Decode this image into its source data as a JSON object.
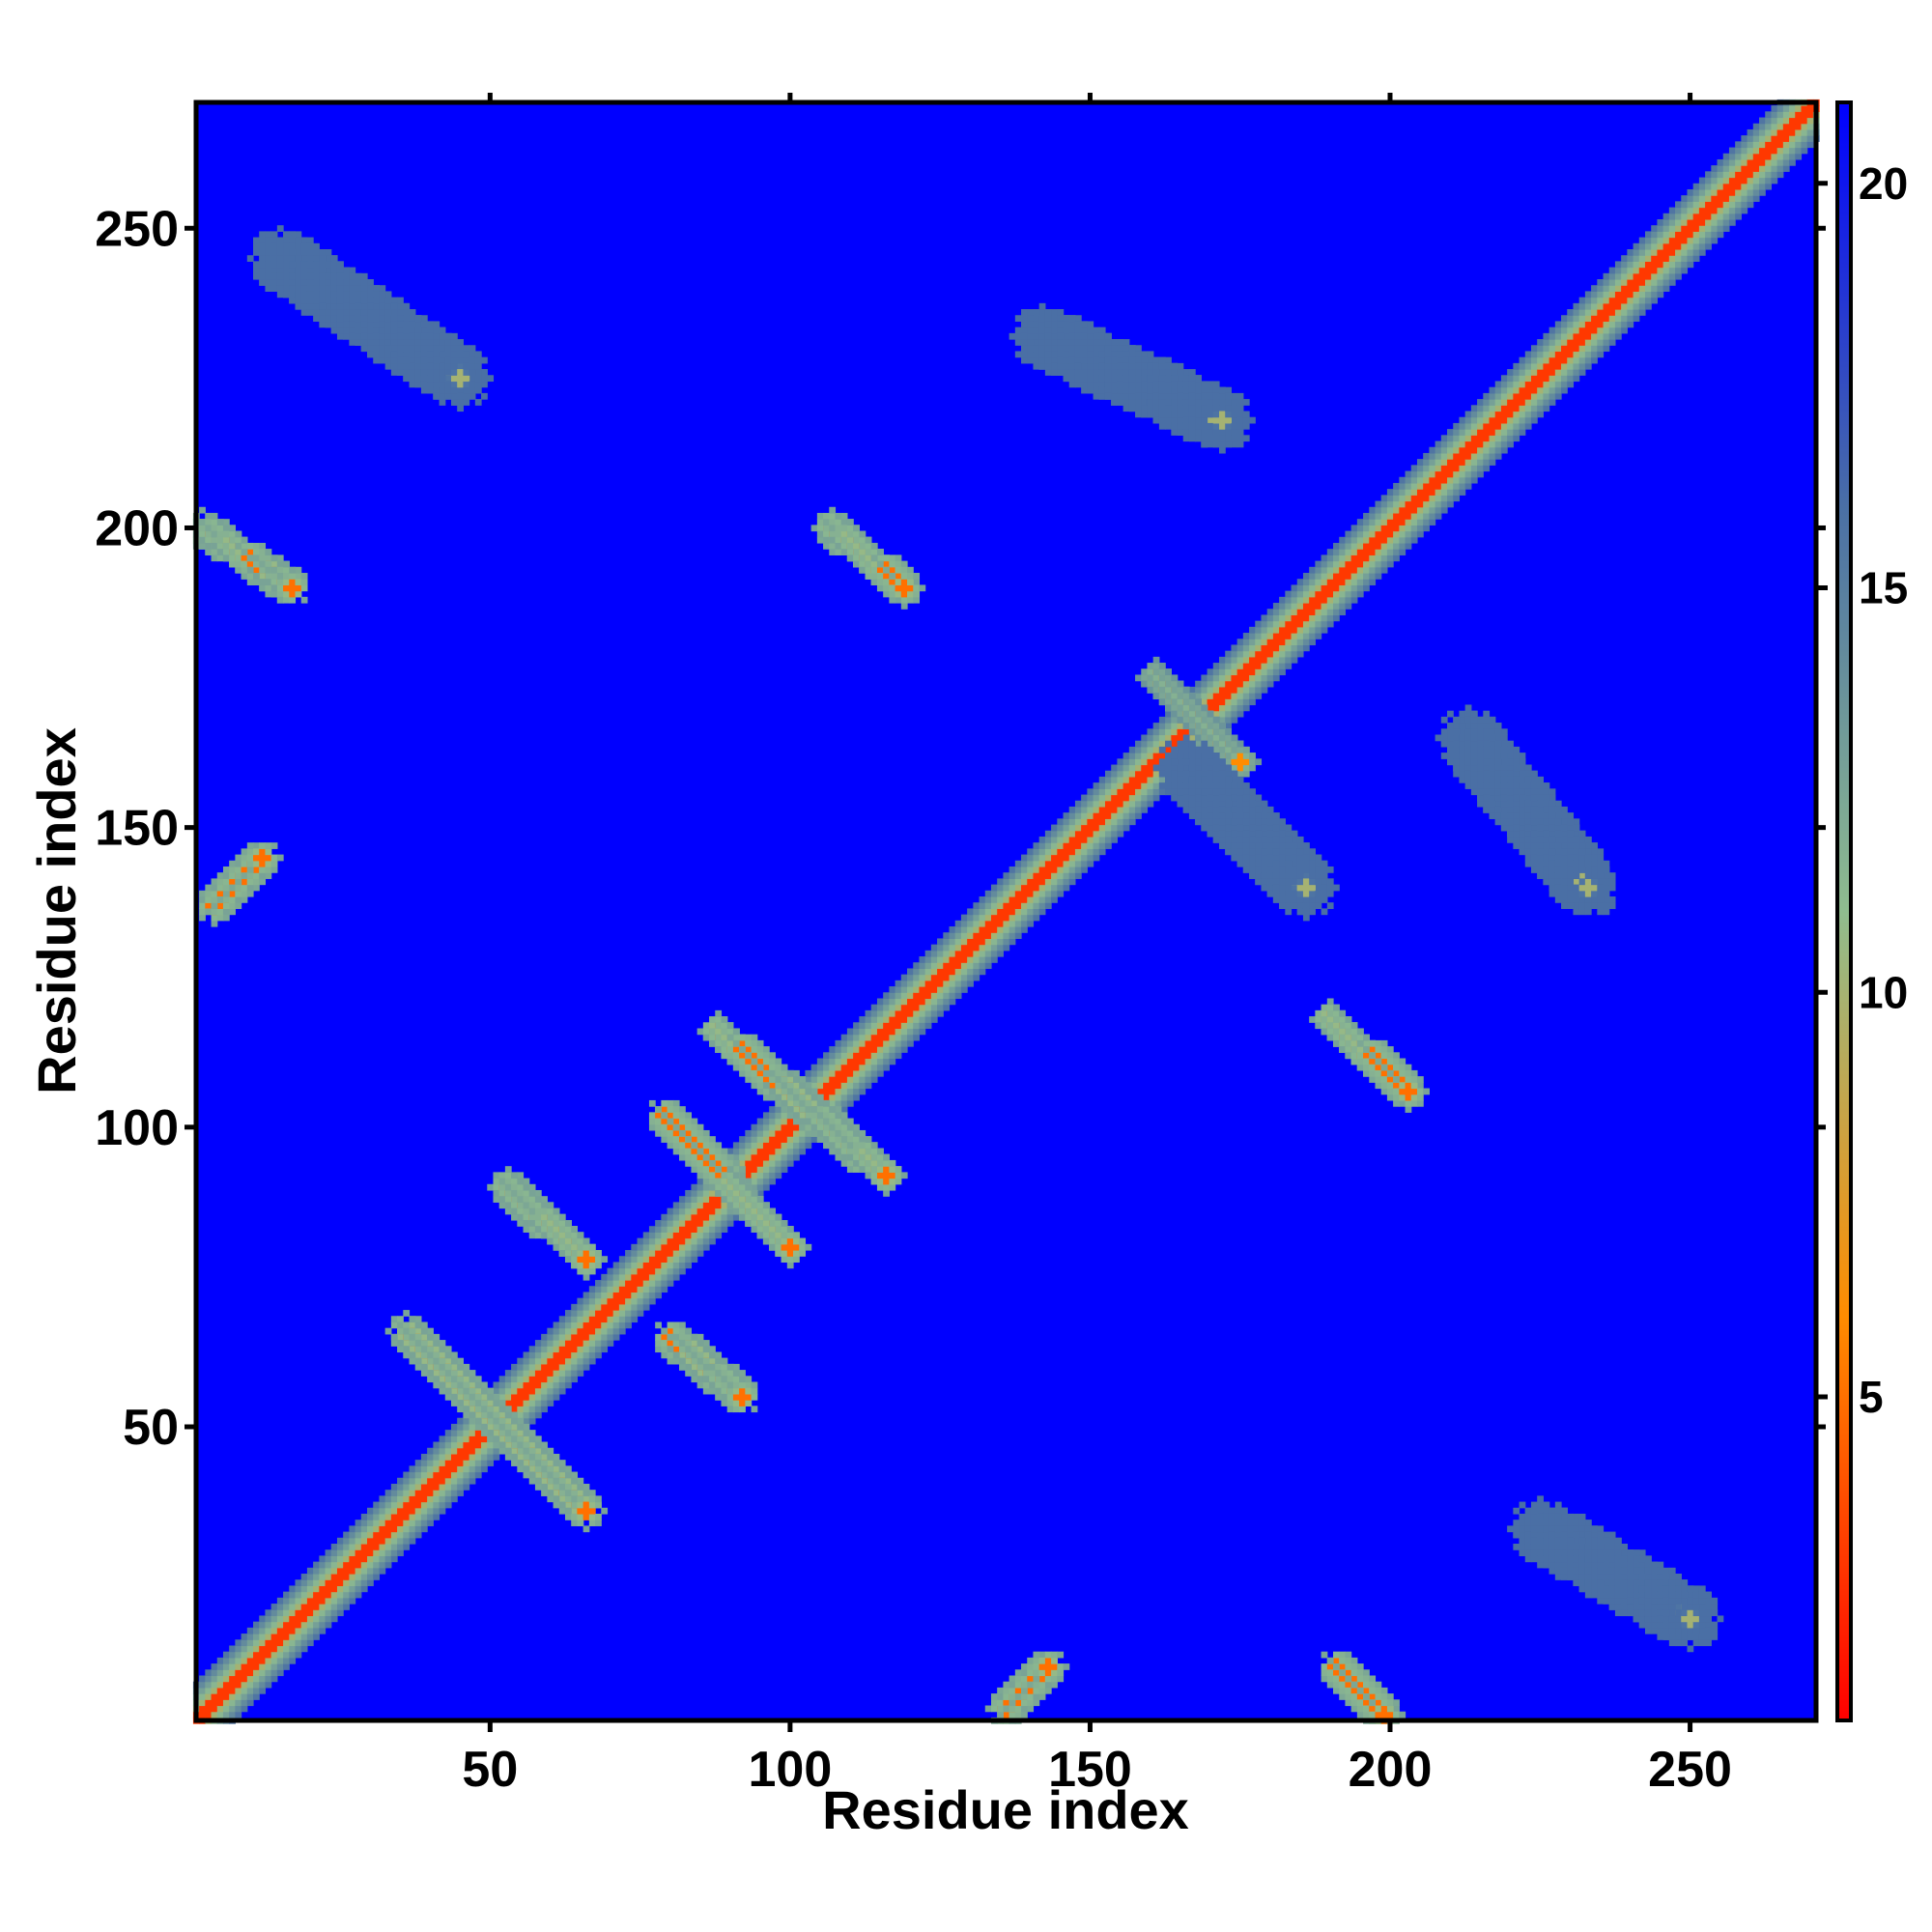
{
  "chart_data": {
    "type": "heatmap",
    "title": "",
    "xlabel": "Residue index",
    "ylabel": "Residue index",
    "xlim": [
      1,
      271
    ],
    "ylim": [
      1,
      271
    ],
    "xticks": [
      50,
      100,
      150,
      200,
      250
    ],
    "yticks": [
      50,
      100,
      150,
      200,
      250
    ],
    "colorbar": {
      "ticks": [
        5,
        10,
        15,
        20
      ],
      "range": [
        1,
        21
      ],
      "colors": [
        "#ff0000",
        "#ff8c00",
        "#8fbc8f",
        "#4a6fa5",
        "#0000ff"
      ]
    },
    "background_value": 21,
    "diagonal": {
      "from": 1,
      "to": 271,
      "core_value": 3,
      "halo_value": 10
    },
    "contact_bands": [
      {
        "x": [
          36,
          66
        ],
        "y": [
          66,
          36
        ],
        "value": 5
      },
      {
        "x": [
          53,
          66
        ],
        "y": [
          90,
          78
        ],
        "value": 5
      },
      {
        "x": [
          79,
          100
        ],
        "y": [
          102,
          80
        ],
        "value": 5
      },
      {
        "x": [
          88,
          116
        ],
        "y": [
          116,
          92
        ],
        "value": 5
      },
      {
        "x": [
          80,
          92
        ],
        "y": [
          65,
          55
        ],
        "value": 5
      },
      {
        "x": [
          107,
          119
        ],
        "y": [
          200,
          190
        ],
        "value": 5
      },
      {
        "x": [
          2,
          17
        ],
        "y": [
          200,
          190
        ],
        "value": 5
      },
      {
        "x": [
          4,
          12
        ],
        "y": [
          137,
          145
        ],
        "value": 5
      },
      {
        "x": [
          161,
          175
        ],
        "y": [
          175,
          161
        ],
        "value": 6
      },
      {
        "x": [
          190,
          203
        ],
        "y": [
          118,
          106
        ],
        "value": 5
      },
      {
        "x": [
          191,
          199
        ],
        "y": [
          10,
          2
        ],
        "value": 5
      },
      {
        "x": [
          136,
          143
        ],
        "y": [
          3,
          10
        ],
        "value": 5
      },
      {
        "x": [
          15,
          45
        ],
        "y": [
          245,
          225
        ],
        "value": 10
      },
      {
        "x": [
          142,
          172
        ],
        "y": [
          232,
          218
        ],
        "value": 10
      },
      {
        "x": [
          225,
          250
        ],
        "y": [
          33,
          18
        ],
        "value": 10
      },
      {
        "x": [
          213,
          233
        ],
        "y": [
          165,
          140
        ],
        "value": 10
      },
      {
        "x": [
          166,
          186
        ],
        "y": [
          160,
          140
        ],
        "value": 10
      }
    ],
    "grid": false,
    "legend": "colorbar-right"
  }
}
